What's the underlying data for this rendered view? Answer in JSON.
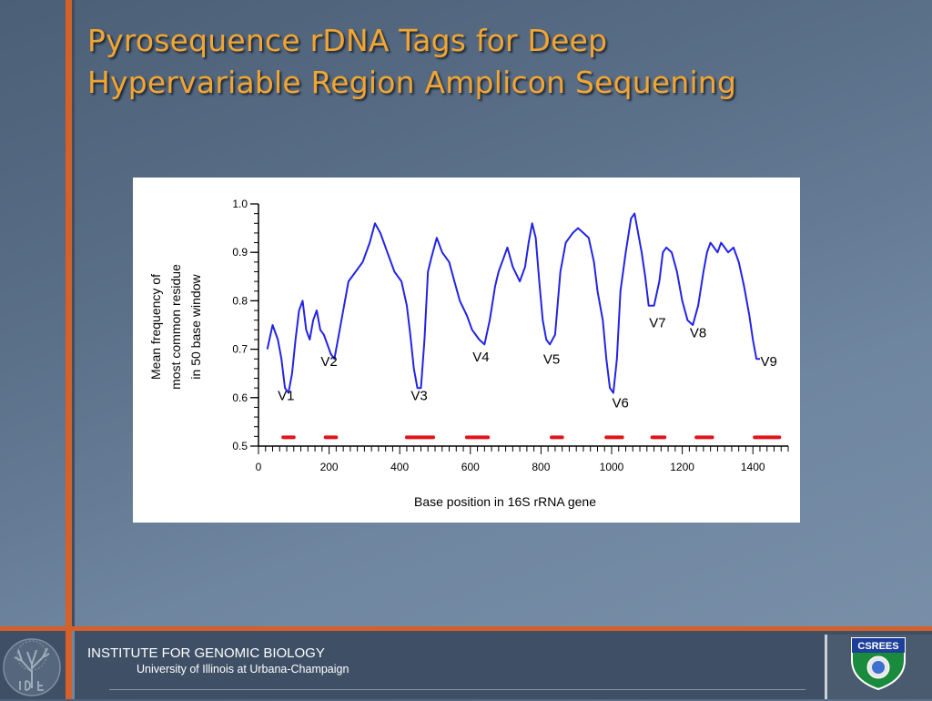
{
  "slide": {
    "title_line1": "Pyrosequence rDNA Tags for Deep",
    "title_line2": "Hypervariable Region Amplicon Sequening"
  },
  "footer": {
    "institute": "INSTITUTE FOR GENOMIC BIOLOGY",
    "university": "University of Illinois at Urbana-Champaign",
    "right_logo_text": "CSREES",
    "colors": {
      "bar": "#d4602a",
      "panel": "#3f5066"
    }
  },
  "chart_data": {
    "type": "line",
    "xlabel": "Base position in 16S rRNA gene",
    "ylabel_lines": [
      "Mean frequency of",
      "most common residue",
      "in 50 base window"
    ],
    "xlim": [
      0,
      1500
    ],
    "ylim": [
      0.5,
      1.0
    ],
    "x_ticks": [
      0,
      200,
      400,
      600,
      800,
      1000,
      1200,
      1400
    ],
    "y_ticks": [
      0.5,
      0.6,
      0.7,
      0.8,
      0.9,
      1.0
    ],
    "y_tick_labels": [
      "0.5",
      "0.6",
      "0.7",
      "0.8",
      "0.9",
      "1.0"
    ],
    "series": [
      {
        "color": "#2323e6",
        "x": [
          25,
          40,
          55,
          65,
          75,
          85,
          95,
          105,
          115,
          125,
          135,
          145,
          155,
          165,
          175,
          185,
          195,
          205,
          215,
          225,
          240,
          255,
          275,
          295,
          315,
          330,
          345,
          365,
          385,
          405,
          420,
          430,
          440,
          450,
          460,
          470,
          480,
          490,
          505,
          520,
          540,
          555,
          570,
          590,
          605,
          615,
          625,
          640,
          655,
          670,
          680,
          690,
          705,
          720,
          740,
          755,
          765,
          775,
          785,
          795,
          805,
          815,
          825,
          840,
          855,
          870,
          890,
          905,
          920,
          935,
          950,
          960,
          975,
          985,
          995,
          1005,
          1015,
          1025,
          1040,
          1055,
          1065,
          1075,
          1085,
          1095,
          1105,
          1120,
          1135,
          1145,
          1155,
          1170,
          1185,
          1200,
          1215,
          1230,
          1245,
          1260,
          1270,
          1280,
          1290,
          1300,
          1310,
          1320,
          1330,
          1345,
          1360,
          1375,
          1390,
          1400,
          1410,
          1420
        ],
        "y": [
          0.7,
          0.75,
          0.72,
          0.68,
          0.62,
          0.61,
          0.65,
          0.72,
          0.78,
          0.8,
          0.74,
          0.72,
          0.76,
          0.78,
          0.74,
          0.73,
          0.71,
          0.69,
          0.68,
          0.72,
          0.78,
          0.84,
          0.86,
          0.88,
          0.92,
          0.96,
          0.94,
          0.9,
          0.86,
          0.84,
          0.79,
          0.73,
          0.66,
          0.62,
          0.62,
          0.72,
          0.86,
          0.89,
          0.93,
          0.9,
          0.88,
          0.84,
          0.8,
          0.77,
          0.74,
          0.73,
          0.72,
          0.71,
          0.76,
          0.83,
          0.86,
          0.88,
          0.91,
          0.87,
          0.84,
          0.87,
          0.92,
          0.96,
          0.93,
          0.84,
          0.76,
          0.72,
          0.71,
          0.73,
          0.86,
          0.92,
          0.94,
          0.95,
          0.94,
          0.93,
          0.88,
          0.82,
          0.76,
          0.68,
          0.62,
          0.61,
          0.68,
          0.82,
          0.9,
          0.97,
          0.98,
          0.94,
          0.9,
          0.85,
          0.79,
          0.79,
          0.84,
          0.9,
          0.91,
          0.9,
          0.86,
          0.8,
          0.76,
          0.75,
          0.79,
          0.86,
          0.9,
          0.92,
          0.91,
          0.9,
          0.92,
          0.91,
          0.9,
          0.91,
          0.88,
          0.83,
          0.77,
          0.72,
          0.68,
          0.68
        ]
      }
    ],
    "region_labels": [
      {
        "text": "V1",
        "x": 78,
        "y": 0.595
      },
      {
        "text": "V2",
        "x": 200,
        "y": 0.665
      },
      {
        "text": "V3",
        "x": 455,
        "y": 0.595
      },
      {
        "text": "V4",
        "x": 630,
        "y": 0.675
      },
      {
        "text": "V5",
        "x": 830,
        "y": 0.67
      },
      {
        "text": "V6",
        "x": 1025,
        "y": 0.58
      },
      {
        "text": "V7",
        "x": 1130,
        "y": 0.745
      },
      {
        "text": "V8",
        "x": 1245,
        "y": 0.725
      },
      {
        "text": "V9",
        "x": 1445,
        "y": 0.665
      }
    ],
    "region_bars": [
      {
        "start": 70,
        "end": 100
      },
      {
        "start": 190,
        "end": 220
      },
      {
        "start": 420,
        "end": 495
      },
      {
        "start": 590,
        "end": 650
      },
      {
        "start": 830,
        "end": 860
      },
      {
        "start": 985,
        "end": 1030
      },
      {
        "start": 1115,
        "end": 1150
      },
      {
        "start": 1240,
        "end": 1285
      },
      {
        "start": 1405,
        "end": 1475
      }
    ],
    "line_color": "#2323e6",
    "bar_color": "#e0151b",
    "grid": false
  }
}
